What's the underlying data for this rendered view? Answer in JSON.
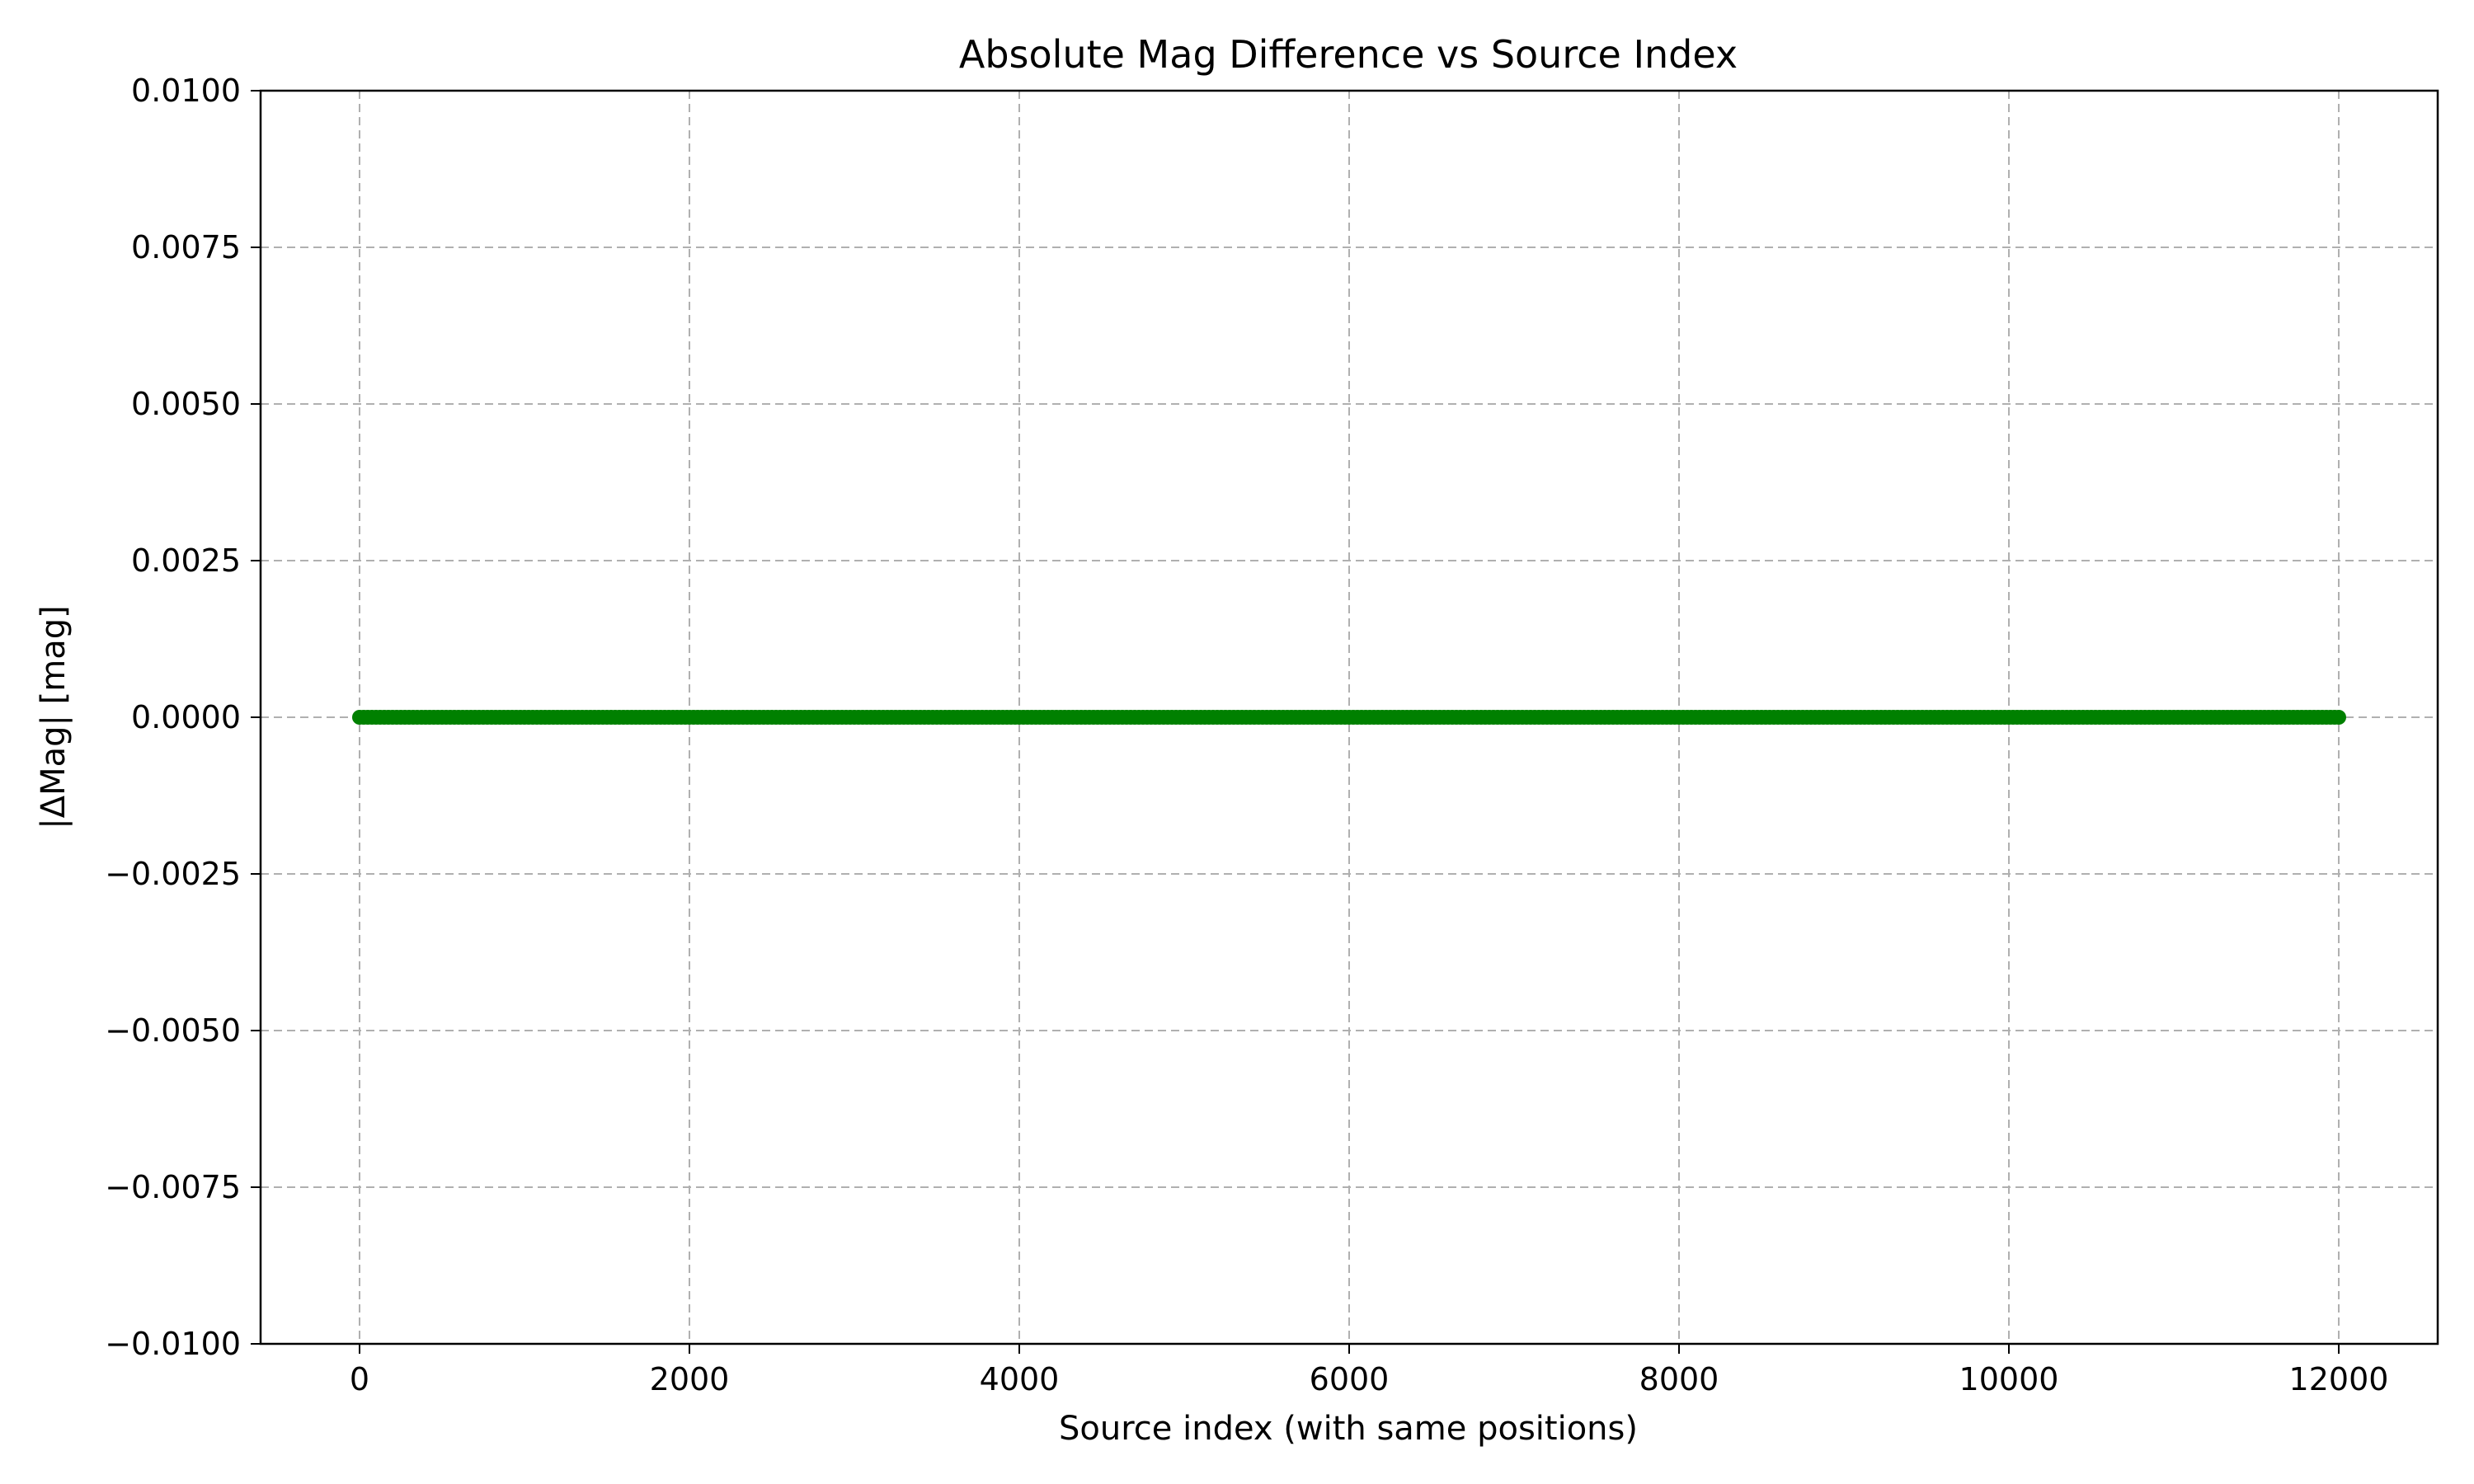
{
  "chart_data": {
    "type": "scatter",
    "title": "Absolute Mag Difference vs Source Index",
    "xlabel": "Source index (with same positions)",
    "ylabel": "|ΔMag| [mag]",
    "xlim": [
      -600,
      12600
    ],
    "ylim": [
      -0.01,
      0.01
    ],
    "x_ticks": [
      0,
      2000,
      4000,
      6000,
      8000,
      10000,
      12000
    ],
    "x_tick_labels": [
      "0",
      "2000",
      "4000",
      "6000",
      "8000",
      "10000",
      "12000"
    ],
    "y_ticks": [
      0.01,
      0.0075,
      0.005,
      0.0025,
      0.0,
      -0.0025,
      -0.005,
      -0.0075,
      -0.01
    ],
    "y_tick_labels": [
      "0.0100",
      "0.0075",
      "0.0050",
      "0.0025",
      "0.0000",
      "−0.0025",
      "−0.0050",
      "−0.0075",
      "−0.0100"
    ],
    "grid": true,
    "grid_style": "dashed",
    "legend": "none",
    "series": [
      {
        "color": "#008000",
        "x_start": 0,
        "x_end": 12000,
        "x_step": 25,
        "y_constant": 0.0
      }
    ]
  },
  "colors": {
    "background": "#ffffff",
    "axes": "#000000",
    "grid": "#b0b0b0",
    "series": "#008000"
  }
}
